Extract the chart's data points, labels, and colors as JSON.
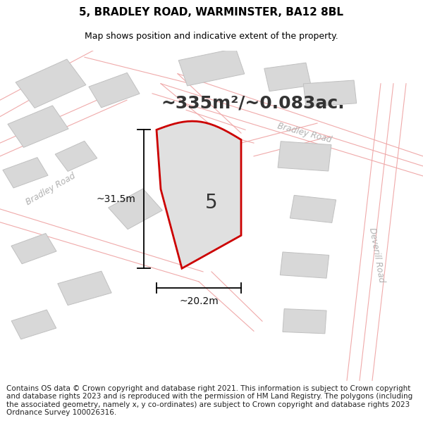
{
  "title": "5, BRADLEY ROAD, WARMINSTER, BA12 8BL",
  "subtitle": "Map shows position and indicative extent of the property.",
  "area_label": "~335m²/~0.083ac.",
  "plot_number": "5",
  "dim_height": "~31.5m",
  "dim_width": "~20.2m",
  "footer": "Contains OS data © Crown copyright and database right 2021. This information is subject to Crown copyright and database rights 2023 and is reproduced with the permission of HM Land Registry. The polygons (including the associated geometry, namely x, y co-ordinates) are subject to Crown copyright and database rights 2023 Ordnance Survey 100026316.",
  "bg_color": "#ffffff",
  "map_bg": "#ffffff",
  "road_color_light": "#f5c8c8",
  "road_stroke": "#e08080",
  "plot_fill": "#e0e0e0",
  "plot_stroke": "#cc0000",
  "building_fill": "#d8d8d8",
  "building_edge": "#c0c0c0",
  "road_label_color": "#b0b0b0",
  "road_line_color": "#f0aaaa",
  "title_fontsize": 11,
  "subtitle_fontsize": 9,
  "area_fontsize": 18,
  "plot_num_fontsize": 20,
  "dim_fontsize": 10,
  "footer_fontsize": 7.5
}
